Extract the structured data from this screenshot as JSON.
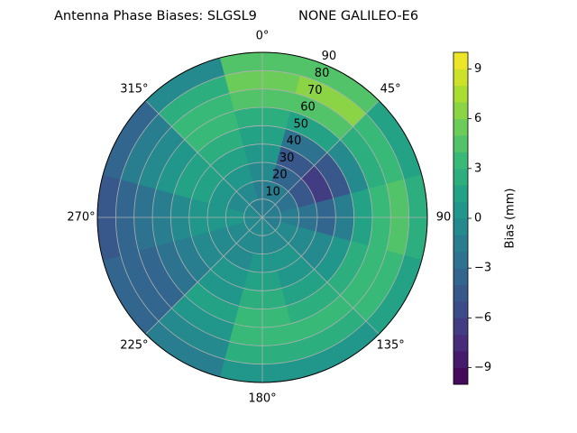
{
  "chart_data": {
    "type": "polar_contour",
    "title": "Antenna Phase Biases: SLGSL9          NONE GALILEO-E6",
    "theta": [
      0,
      30,
      60,
      90,
      120,
      150,
      180,
      210,
      240,
      270,
      300,
      330
    ],
    "r": [
      5,
      15,
      25,
      35,
      45,
      55,
      65,
      75,
      85
    ],
    "z": [
      [
        -2,
        -2,
        -1,
        0,
        1,
        2,
        4,
        5,
        4
      ],
      [
        -2,
        -2,
        -4,
        -5,
        -3,
        1,
        4,
        6,
        4
      ],
      [
        -2,
        -3,
        -5,
        -7,
        -5,
        -1,
        2,
        3,
        1
      ],
      [
        -2,
        -2,
        -3,
        -4,
        -2,
        1,
        3,
        4,
        2
      ],
      [
        -2,
        -1,
        -1,
        -1,
        0,
        2,
        3,
        3,
        1
      ],
      [
        -1,
        -1,
        0,
        0,
        1,
        2,
        3,
        2,
        0
      ],
      [
        -1,
        -1,
        0,
        1,
        2,
        3,
        3,
        2,
        0
      ],
      [
        -1,
        -1,
        -1,
        0,
        0,
        1,
        0,
        -1,
        -2
      ],
      [
        -1,
        -1,
        -1,
        -1,
        -2,
        -3,
        -4,
        -4,
        -4
      ],
      [
        -1,
        0,
        0,
        0,
        -1,
        -2,
        -3,
        -4,
        -5
      ],
      [
        -1,
        -1,
        0,
        1,
        1,
        0,
        -1,
        -2,
        -4
      ],
      [
        -2,
        -1,
        0,
        1,
        2,
        3,
        3,
        2,
        -1
      ]
    ],
    "rlim": [
      0,
      90
    ],
    "rticks": [
      10,
      20,
      30,
      40,
      50,
      60,
      70,
      80,
      90
    ],
    "thetaticks": [
      {
        "value": 0,
        "label": "0°"
      },
      {
        "value": 45,
        "label": "45°"
      },
      90,
      {
        "value": 135,
        "label": "135°"
      },
      {
        "value": 180,
        "label": "180°"
      },
      {
        "value": 225,
        "label": "225°"
      },
      {
        "value": 270,
        "label": "270°"
      },
      {
        "value": 315,
        "label": "315°"
      }
    ],
    "grid": true,
    "colormap": "viridis",
    "levels": 20,
    "clim": [
      -10,
      10
    ],
    "cticks": [
      {
        "value": -9,
        "label": "−9"
      },
      {
        "value": -6,
        "label": "−6"
      },
      {
        "value": -3,
        "label": "−3"
      },
      0,
      3,
      6,
      9
    ],
    "clabel": "Bias (mm)"
  }
}
